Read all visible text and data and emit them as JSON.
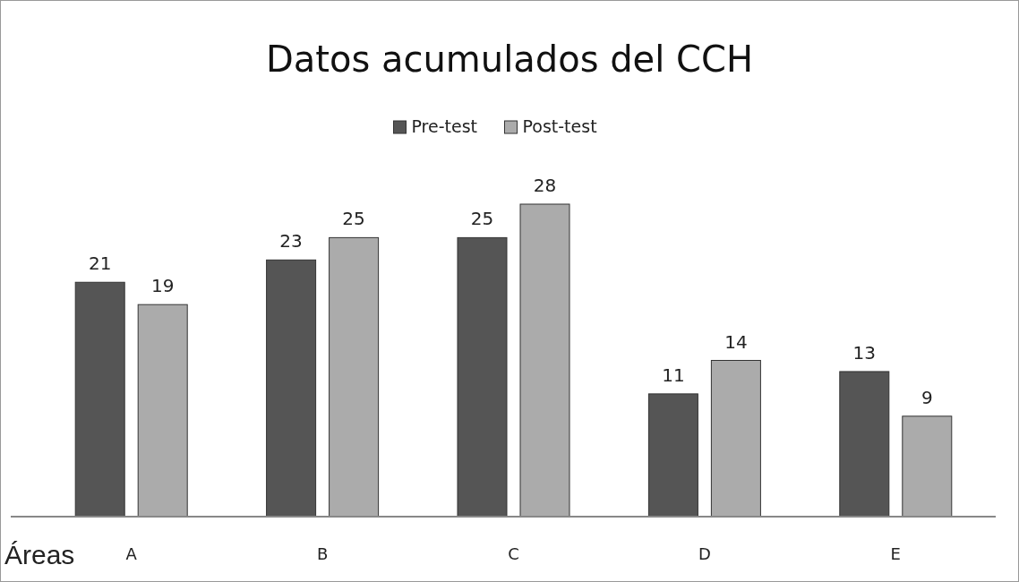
{
  "chart_data": {
    "type": "bar",
    "title": "Datos acumulados del CCH",
    "xlabel": "Áreas",
    "categories": [
      "A",
      "B",
      "C",
      "D",
      "E"
    ],
    "series": [
      {
        "name": "Pre-test",
        "color": "#555555",
        "values": [
          21,
          23,
          25,
          11,
          13
        ]
      },
      {
        "name": "Post-test",
        "color": "#ababab",
        "values": [
          19,
          25,
          28,
          14,
          9
        ]
      }
    ],
    "data_labels": true,
    "legend": "top",
    "tick_labels": "x"
  }
}
